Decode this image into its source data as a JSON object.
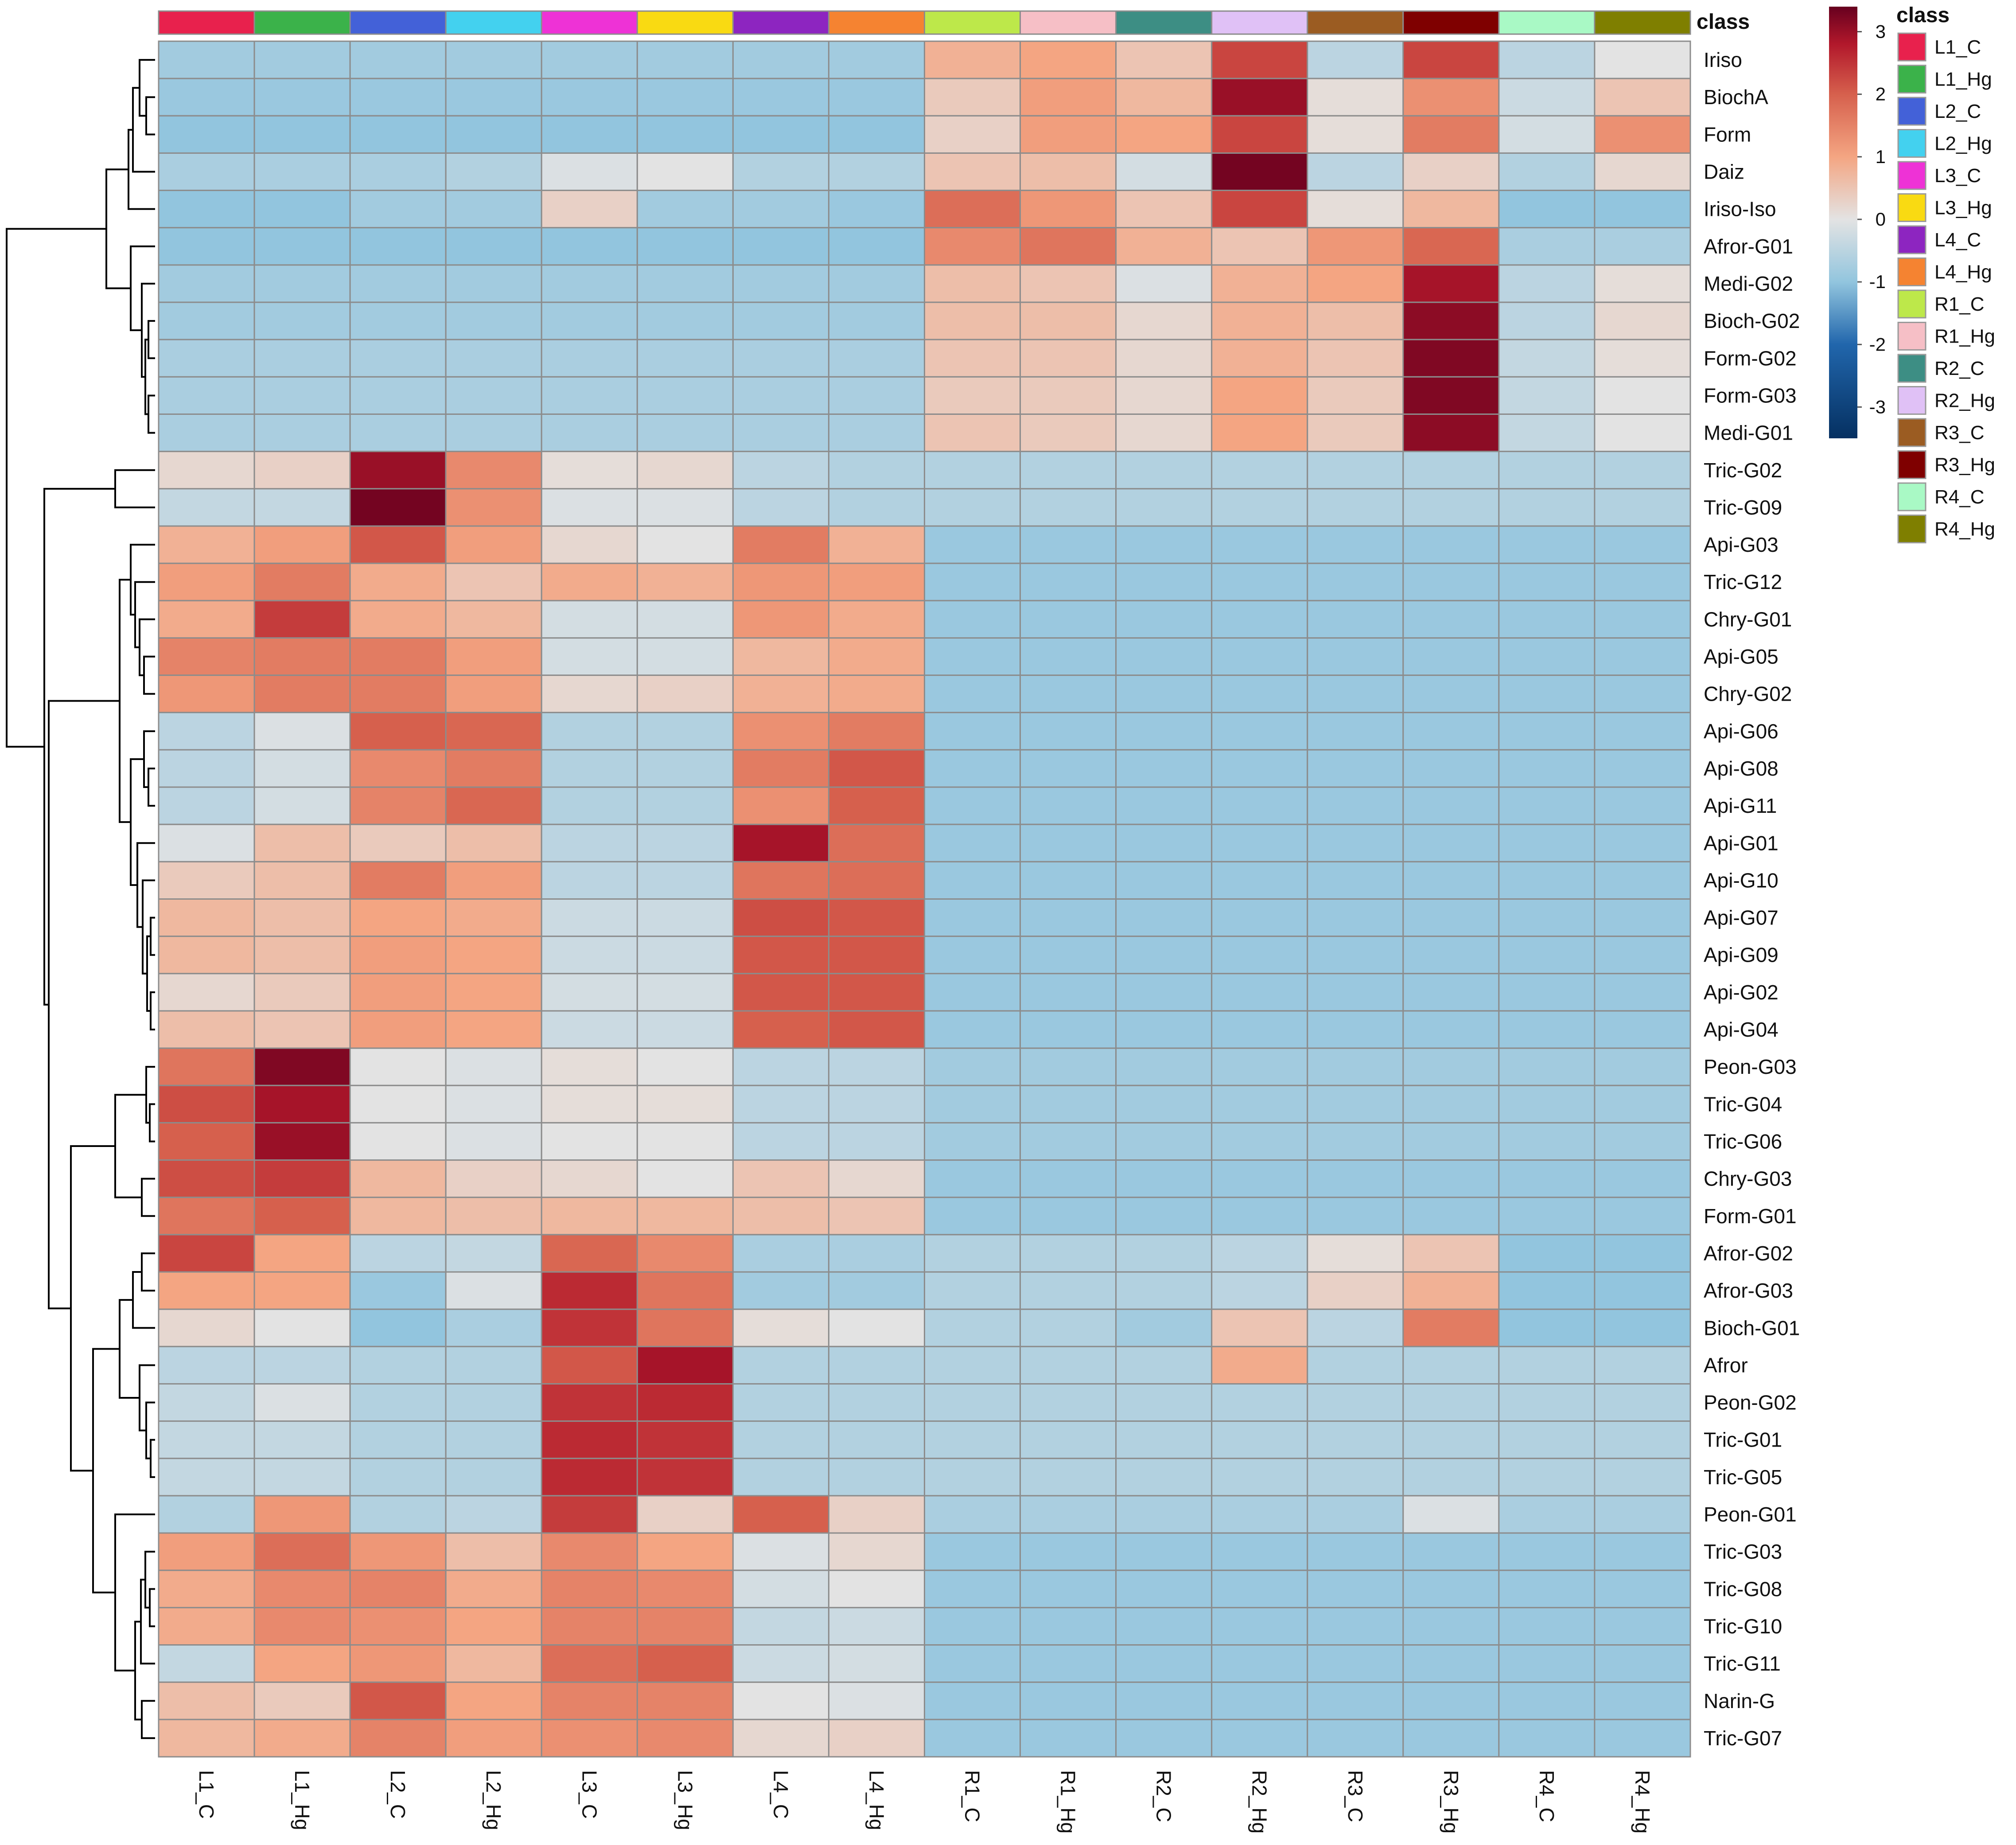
{
  "chart_data": {
    "type": "heatmap",
    "title": "",
    "annotation_title": "class",
    "columns": [
      "L1_C",
      "L1_Hg",
      "L2_C",
      "L2_Hg",
      "L3_C",
      "L3_Hg",
      "L4_C",
      "L4_Hg",
      "R1_C",
      "R1_Hg",
      "R2_C",
      "R2_Hg",
      "R3_C",
      "R3_Hg",
      "R4_C",
      "R4_Hg"
    ],
    "class_colors": [
      "#e8214d",
      "#3bb24a",
      "#4361d8",
      "#43d1ef",
      "#ee32d6",
      "#f9da12",
      "#8d25c0",
      "#f58331",
      "#bde84a",
      "#f6bfc6",
      "#3d8e84",
      "#e0c1f6",
      "#9b5c22",
      "#7f0000",
      "#a9f9c5",
      "#7f7f00"
    ],
    "rows": [
      "Iriso",
      "BiochA",
      "Form",
      "Daiz",
      "Iriso-Iso",
      "Afror-G01",
      "Medi-G02",
      "Bioch-G02",
      "Form-G02",
      "Form-G03",
      "Medi-G01",
      "Tric-G02",
      "Tric-G09",
      "Api-G03",
      "Tric-G12",
      "Chry-G01",
      "Api-G05",
      "Chry-G02",
      "Api-G06",
      "Api-G08",
      "Api-G11",
      "Api-G01",
      "Api-G10",
      "Api-G07",
      "Api-G09",
      "Api-G02",
      "Api-G04",
      "Peon-G03",
      "Tric-G04",
      "Tric-G06",
      "Chry-G03",
      "Form-G01",
      "Afror-G02",
      "Afror-G03",
      "Bioch-G01",
      "Afror",
      "Peon-G02",
      "Tric-G01",
      "Tric-G05",
      "Peon-G01",
      "Tric-G03",
      "Tric-G08",
      "Tric-G10",
      "Tric-G11",
      "Narin-G",
      "Tric-G07"
    ],
    "values": [
      [
        -0.8,
        -0.8,
        -0.8,
        -0.8,
        -0.8,
        -0.8,
        -0.8,
        -0.8,
        0.8,
        1.0,
        0.5,
        2.3,
        -0.5,
        2.3,
        -0.5,
        0.0
      ],
      [
        -0.9,
        -0.9,
        -0.9,
        -0.9,
        -0.9,
        -0.9,
        -0.9,
        -0.9,
        0.4,
        1.1,
        0.7,
        3.0,
        0.1,
        1.3,
        -0.3,
        0.5
      ],
      [
        -1.0,
        -1.0,
        -1.0,
        -1.0,
        -1.0,
        -1.0,
        -1.0,
        -1.0,
        0.3,
        1.1,
        1.0,
        2.3,
        0.1,
        1.6,
        -0.2,
        1.3
      ],
      [
        -0.7,
        -0.7,
        -0.7,
        -0.6,
        -0.1,
        0.0,
        -0.6,
        -0.6,
        0.5,
        0.6,
        -0.2,
        3.3,
        -0.5,
        0.3,
        -0.6,
        0.2
      ],
      [
        -1.0,
        -1.0,
        -0.8,
        -0.8,
        0.3,
        -0.8,
        -0.8,
        -0.9,
        1.8,
        1.2,
        0.5,
        2.3,
        0.1,
        0.7,
        -1.0,
        -1.0
      ],
      [
        -1.0,
        -1.0,
        -1.0,
        -1.0,
        -1.0,
        -1.0,
        -1.0,
        -1.0,
        1.4,
        1.7,
        0.8,
        0.5,
        1.2,
        1.9,
        -0.7,
        -0.7
      ],
      [
        -0.8,
        -0.8,
        -0.8,
        -0.8,
        -0.8,
        -0.8,
        -0.8,
        -0.8,
        0.6,
        0.5,
        -0.1,
        0.8,
        1.0,
        2.9,
        -0.5,
        0.1
      ],
      [
        -0.8,
        -0.8,
        -0.8,
        -0.8,
        -0.8,
        -0.8,
        -0.8,
        -0.8,
        0.6,
        0.6,
        0.2,
        0.8,
        0.6,
        3.1,
        -0.5,
        0.2
      ],
      [
        -0.7,
        -0.7,
        -0.7,
        -0.7,
        -0.7,
        -0.7,
        -0.7,
        -0.7,
        0.5,
        0.5,
        0.2,
        0.8,
        0.5,
        3.2,
        -0.4,
        0.1
      ],
      [
        -0.7,
        -0.7,
        -0.7,
        -0.7,
        -0.7,
        -0.7,
        -0.7,
        -0.7,
        0.4,
        0.4,
        0.2,
        1.0,
        0.4,
        3.2,
        -0.4,
        0.0
      ],
      [
        -0.7,
        -0.7,
        -0.7,
        -0.7,
        -0.7,
        -0.7,
        -0.7,
        -0.7,
        0.5,
        0.4,
        0.2,
        1.0,
        0.4,
        3.1,
        -0.4,
        0.0
      ],
      [
        0.2,
        0.3,
        3.0,
        1.4,
        0.1,
        0.2,
        -0.5,
        -0.6,
        -0.6,
        -0.6,
        -0.6,
        -0.6,
        -0.6,
        -0.6,
        -0.6,
        -0.6
      ],
      [
        -0.4,
        -0.4,
        3.3,
        1.3,
        -0.1,
        -0.1,
        -0.5,
        -0.6,
        -0.6,
        -0.6,
        -0.6,
        -0.6,
        -0.6,
        -0.6,
        -0.6,
        -0.6
      ],
      [
        0.8,
        1.1,
        2.1,
        1.1,
        0.2,
        0.0,
        1.6,
        0.8,
        -0.9,
        -0.9,
        -0.9,
        -0.9,
        -0.9,
        -0.9,
        -0.9,
        -0.9
      ],
      [
        1.1,
        1.6,
        0.9,
        0.5,
        0.9,
        0.8,
        1.2,
        1.1,
        -0.9,
        -0.9,
        -0.9,
        -0.9,
        -0.9,
        -0.9,
        -0.9,
        -0.9
      ],
      [
        0.9,
        2.4,
        0.9,
        0.7,
        -0.2,
        -0.2,
        1.2,
        0.9,
        -0.9,
        -0.9,
        -0.9,
        -0.9,
        -0.9,
        -0.9,
        -0.9,
        -0.9
      ],
      [
        1.5,
        1.6,
        1.6,
        1.1,
        -0.2,
        -0.2,
        0.7,
        0.9,
        -0.9,
        -0.9,
        -0.9,
        -0.9,
        -0.9,
        -0.9,
        -0.9,
        -0.9
      ],
      [
        1.2,
        1.6,
        1.6,
        1.1,
        0.2,
        0.3,
        0.8,
        0.9,
        -0.9,
        -0.9,
        -0.9,
        -0.9,
        -0.9,
        -0.9,
        -0.9,
        -0.9
      ],
      [
        -0.5,
        -0.1,
        2.0,
        1.9,
        -0.6,
        -0.6,
        1.3,
        1.6,
        -0.9,
        -0.9,
        -0.9,
        -0.9,
        -0.9,
        -0.9,
        -0.9,
        -0.9
      ],
      [
        -0.5,
        -0.2,
        1.4,
        1.6,
        -0.6,
        -0.6,
        1.6,
        2.1,
        -0.9,
        -0.9,
        -0.9,
        -0.9,
        -0.9,
        -0.9,
        -0.9,
        -0.9
      ],
      [
        -0.5,
        -0.2,
        1.5,
        1.9,
        -0.6,
        -0.6,
        1.3,
        2.0,
        -0.9,
        -0.9,
        -0.9,
        -0.9,
        -0.9,
        -0.9,
        -0.9,
        -0.9
      ],
      [
        -0.1,
        0.6,
        0.4,
        0.6,
        -0.5,
        -0.5,
        2.9,
        1.8,
        -0.9,
        -0.9,
        -0.9,
        -0.9,
        -0.9,
        -0.9,
        -0.9,
        -0.9
      ],
      [
        0.4,
        0.6,
        1.6,
        1.1,
        -0.5,
        -0.5,
        1.7,
        1.8,
        -0.9,
        -0.9,
        -0.9,
        -0.9,
        -0.9,
        -0.9,
        -0.9,
        -0.9
      ],
      [
        0.7,
        0.6,
        1.0,
        0.9,
        -0.3,
        -0.3,
        2.2,
        2.1,
        -0.9,
        -0.9,
        -0.9,
        -0.9,
        -0.9,
        -0.9,
        -0.9,
        -0.9
      ],
      [
        0.7,
        0.6,
        1.1,
        1.0,
        -0.3,
        -0.3,
        2.1,
        2.1,
        -0.9,
        -0.9,
        -0.9,
        -0.9,
        -0.9,
        -0.9,
        -0.9,
        -0.9
      ],
      [
        0.2,
        0.4,
        1.1,
        1.0,
        -0.2,
        -0.2,
        2.1,
        2.1,
        -0.9,
        -0.9,
        -0.9,
        -0.9,
        -0.9,
        -0.9,
        -0.9,
        -0.9
      ],
      [
        0.6,
        0.5,
        1.1,
        1.0,
        -0.3,
        -0.3,
        2.0,
        2.1,
        -0.9,
        -0.9,
        -0.9,
        -0.9,
        -0.9,
        -0.9,
        -0.9,
        -0.9
      ],
      [
        1.7,
        3.2,
        0.0,
        -0.1,
        0.1,
        0.0,
        -0.5,
        -0.5,
        -0.8,
        -0.8,
        -0.8,
        -0.8,
        -0.8,
        -0.8,
        -0.8,
        -0.8
      ],
      [
        2.2,
        2.9,
        0.0,
        -0.1,
        0.1,
        0.1,
        -0.5,
        -0.5,
        -0.8,
        -0.8,
        -0.8,
        -0.8,
        -0.8,
        -0.8,
        -0.8,
        -0.8
      ],
      [
        2.0,
        3.0,
        0.0,
        -0.1,
        0.0,
        0.0,
        -0.5,
        -0.5,
        -0.8,
        -0.8,
        -0.8,
        -0.8,
        -0.8,
        -0.8,
        -0.8,
        -0.8
      ],
      [
        2.2,
        2.4,
        0.7,
        0.3,
        0.2,
        0.0,
        0.5,
        0.2,
        -0.9,
        -0.9,
        -0.9,
        -0.9,
        -0.9,
        -0.9,
        -0.9,
        -0.9
      ],
      [
        1.7,
        2.0,
        0.7,
        0.6,
        0.7,
        0.7,
        0.6,
        0.5,
        -0.9,
        -0.9,
        -0.9,
        -0.9,
        -0.9,
        -0.9,
        -0.9,
        -0.9
      ],
      [
        2.3,
        1.0,
        -0.5,
        -0.4,
        1.9,
        1.4,
        -0.7,
        -0.7,
        -0.6,
        -0.6,
        -0.6,
        -0.5,
        0.1,
        0.5,
        -1.0,
        -1.0
      ],
      [
        1.0,
        1.0,
        -0.9,
        -0.1,
        2.6,
        1.7,
        -0.8,
        -0.8,
        -0.6,
        -0.6,
        -0.6,
        -0.5,
        0.3,
        0.8,
        -1.0,
        -1.0
      ],
      [
        0.2,
        0.0,
        -1.0,
        -0.7,
        2.5,
        1.7,
        0.1,
        0.0,
        -0.6,
        -0.6,
        -0.8,
        0.5,
        -0.5,
        1.6,
        -1.0,
        -1.0
      ],
      [
        -0.5,
        -0.5,
        -0.6,
        -0.6,
        2.1,
        2.9,
        -0.6,
        -0.6,
        -0.6,
        -0.6,
        -0.6,
        0.9,
        -0.6,
        -0.6,
        -0.6,
        -0.6
      ],
      [
        -0.4,
        -0.1,
        -0.6,
        -0.6,
        2.5,
        2.6,
        -0.6,
        -0.6,
        -0.6,
        -0.6,
        -0.6,
        -0.6,
        -0.6,
        -0.6,
        -0.6,
        -0.6
      ],
      [
        -0.4,
        -0.4,
        -0.6,
        -0.6,
        2.6,
        2.5,
        -0.6,
        -0.6,
        -0.6,
        -0.6,
        -0.6,
        -0.6,
        -0.6,
        -0.6,
        -0.6,
        -0.6
      ],
      [
        -0.4,
        -0.4,
        -0.6,
        -0.6,
        2.6,
        2.5,
        -0.6,
        -0.6,
        -0.6,
        -0.6,
        -0.6,
        -0.6,
        -0.6,
        -0.6,
        -0.6,
        -0.6
      ],
      [
        -0.6,
        1.2,
        -0.6,
        -0.5,
        2.4,
        0.3,
        2.0,
        0.3,
        -0.7,
        -0.7,
        -0.7,
        -0.7,
        -0.7,
        -0.1,
        -0.7,
        -0.7
      ],
      [
        1.1,
        1.8,
        1.2,
        0.6,
        1.4,
        1.0,
        -0.1,
        0.2,
        -0.9,
        -0.9,
        -0.9,
        -0.9,
        -0.9,
        -0.9,
        -0.9,
        -0.9
      ],
      [
        0.9,
        1.4,
        1.5,
        0.9,
        1.5,
        1.4,
        -0.2,
        0.0,
        -0.9,
        -0.9,
        -0.9,
        -0.9,
        -0.9,
        -0.9,
        -0.9,
        -0.9
      ],
      [
        0.9,
        1.4,
        1.3,
        1.0,
        1.5,
        1.5,
        -0.4,
        -0.3,
        -0.9,
        -0.9,
        -0.9,
        -0.9,
        -0.9,
        -0.9,
        -0.9,
        -0.9
      ],
      [
        -0.4,
        1.0,
        1.2,
        0.7,
        1.8,
        2.0,
        -0.3,
        -0.2,
        -0.9,
        -0.9,
        -0.9,
        -0.9,
        -0.9,
        -0.9,
        -0.9,
        -0.9
      ],
      [
        0.6,
        0.4,
        2.1,
        1.0,
        1.5,
        1.5,
        0.0,
        -0.1,
        -0.9,
        -0.9,
        -0.9,
        -0.9,
        -0.9,
        -0.9,
        -0.9,
        -0.9
      ],
      [
        0.7,
        0.9,
        1.5,
        1.1,
        1.3,
        1.4,
        0.2,
        0.3,
        -0.9,
        -0.9,
        -0.9,
        -0.9,
        -0.9,
        -0.9,
        -0.9,
        -0.9
      ]
    ],
    "color_scale": {
      "range": [
        -3.5,
        3.4
      ],
      "ticks": [
        3,
        2,
        1,
        0,
        -1,
        -2,
        -3
      ],
      "stops": [
        {
          "value": -3.5,
          "color": "#053061"
        },
        {
          "value": -2.0,
          "color": "#2166ac"
        },
        {
          "value": -1.0,
          "color": "#92c5de"
        },
        {
          "value": 0.0,
          "color": "#e3e3e3"
        },
        {
          "value": 1.0,
          "color": "#f4a582"
        },
        {
          "value": 2.0,
          "color": "#d6604d"
        },
        {
          "value": 2.8,
          "color": "#b2182b"
        },
        {
          "value": 3.4,
          "color": "#67001f"
        }
      ]
    },
    "legend_title": "class",
    "legend_entries": [
      "L1_C",
      "L1_Hg",
      "L2_C",
      "L2_Hg",
      "L3_C",
      "L3_Hg",
      "L4_C",
      "L4_Hg",
      "R1_C",
      "R1_Hg",
      "R2_C",
      "R2_Hg",
      "R3_C",
      "R3_Hg",
      "R4_C",
      "R4_Hg"
    ],
    "row_dendrogram": {
      "description": "hierarchical clustering of rows",
      "groups": [
        [
          0,
          10
        ],
        [
          11,
          12
        ],
        [
          13,
          26
        ],
        [
          27,
          31
        ],
        [
          32,
          38
        ],
        [
          39,
          45
        ]
      ]
    }
  }
}
